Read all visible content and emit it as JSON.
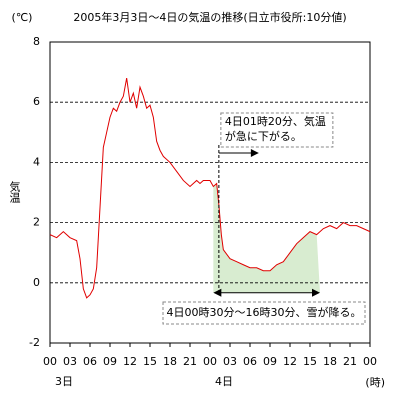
{
  "chart_data": {
    "type": "line",
    "title": "2005年3月3日～4日の気温の推移(日立市役所:10分値)",
    "y_unit": "(℃)",
    "y_label": "気温",
    "x_unit": "(時)",
    "day_labels": [
      {
        "value": 0,
        "label": "3日"
      },
      {
        "value": 24,
        "label": "4日"
      }
    ],
    "series": [
      {
        "name": "気温",
        "color": "#e00000",
        "x": [
          0,
          1,
          2,
          3,
          4,
          4.5,
          5,
          5.5,
          6,
          6.5,
          7,
          7.5,
          8,
          8.5,
          9,
          9.5,
          10,
          10.5,
          11,
          11.5,
          12,
          12.5,
          13,
          13.5,
          14,
          14.5,
          15,
          15.5,
          16,
          16.5,
          17,
          18,
          19,
          20,
          21,
          22,
          22.5,
          23,
          24,
          24.5,
          25,
          25.33,
          25.7,
          26,
          27,
          28,
          29,
          30,
          31,
          32,
          33,
          34,
          35,
          36,
          37,
          38,
          39,
          40,
          41,
          42,
          43,
          44,
          45,
          46,
          47,
          48
        ],
        "values": [
          1.6,
          1.5,
          1.7,
          1.5,
          1.4,
          0.8,
          -0.2,
          -0.5,
          -0.4,
          -0.2,
          0.5,
          2.5,
          4.5,
          5.0,
          5.5,
          5.8,
          5.7,
          6.0,
          6.2,
          6.8,
          6.0,
          6.3,
          5.8,
          6.5,
          6.2,
          5.8,
          5.9,
          5.5,
          4.7,
          4.4,
          4.2,
          4.0,
          3.7,
          3.4,
          3.2,
          3.4,
          3.3,
          3.4,
          3.4,
          3.2,
          3.3,
          2.6,
          1.6,
          1.1,
          0.8,
          0.7,
          0.6,
          0.5,
          0.5,
          0.4,
          0.4,
          0.6,
          0.7,
          1.0,
          1.3,
          1.5,
          1.7,
          1.6,
          1.8,
          1.9,
          1.8,
          2.0,
          1.9,
          1.9,
          1.8,
          1.7
        ]
      }
    ],
    "xlim": [
      0,
      48
    ],
    "xticks": [
      {
        "value": 0,
        "label": "00"
      },
      {
        "value": 3,
        "label": "03"
      },
      {
        "value": 6,
        "label": "06"
      },
      {
        "value": 9,
        "label": "09"
      },
      {
        "value": 12,
        "label": "12"
      },
      {
        "value": 15,
        "label": "15"
      },
      {
        "value": 18,
        "label": "18"
      },
      {
        "value": 21,
        "label": "21"
      },
      {
        "value": 24,
        "label": "00"
      },
      {
        "value": 27,
        "label": "03"
      },
      {
        "value": 30,
        "label": "06"
      },
      {
        "value": 33,
        "label": "09"
      },
      {
        "value": 36,
        "label": "12"
      },
      {
        "value": 39,
        "label": "15"
      },
      {
        "value": 42,
        "label": "18"
      },
      {
        "value": 45,
        "label": "21"
      },
      {
        "value": 48,
        "label": "00"
      }
    ],
    "ylim": [
      -2,
      8
    ],
    "yticks": [
      -2,
      0,
      2,
      4,
      6,
      8
    ],
    "grid": true,
    "annotations": [
      {
        "lines": [
          "4日01時20分、気温",
          "が急に下がる。"
        ],
        "x": 25.33
      },
      {
        "lines": [
          "4日00時30分～16時30分、雪が降る。"
        ],
        "x": [
          24.5,
          40.5
        ],
        "fill": "#d8ecd0"
      }
    ]
  }
}
